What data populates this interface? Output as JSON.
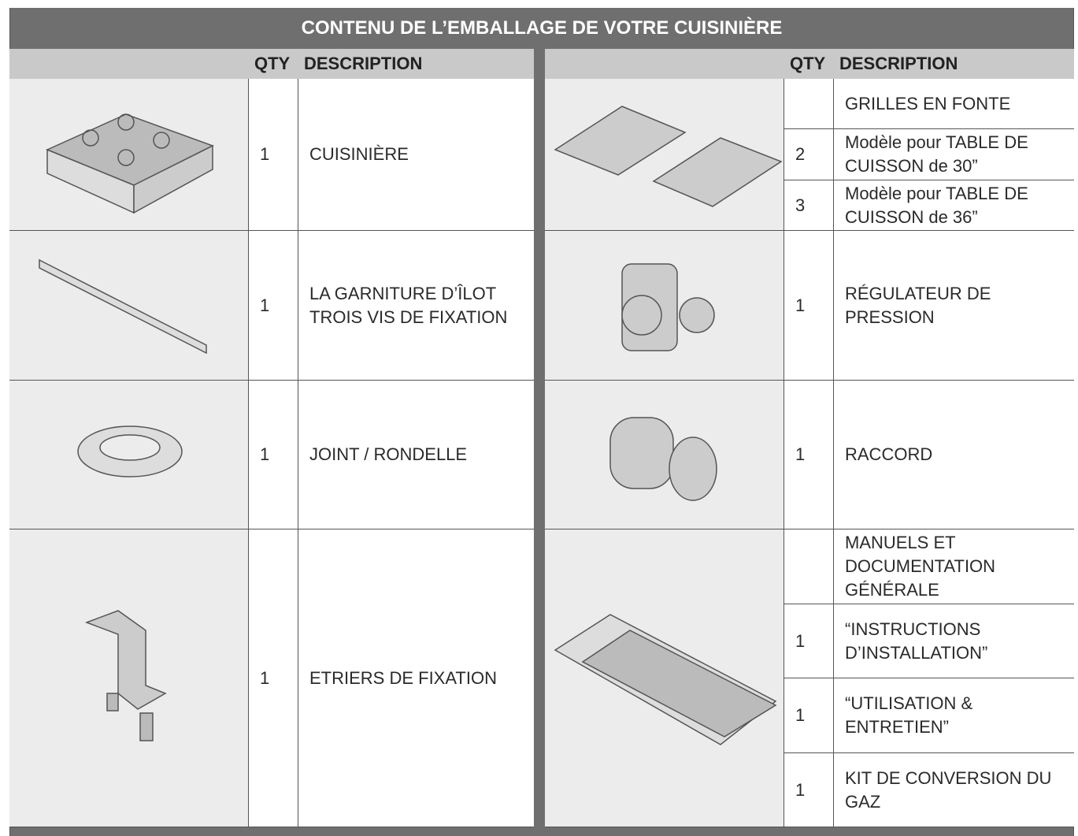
{
  "title": "CONTENU DE L’EMBALLAGE DE VOTRE CUISINIÈRE",
  "columns": {
    "qty": "QTY",
    "description": "DESCRIPTION"
  },
  "left": [
    {
      "qty": 1,
      "description": [
        "CUISINIÈRE"
      ]
    },
    {
      "qty": 1,
      "description": [
        "LA GARNITURE D’ÎLOT",
        "TROIS VIS DE FIXATION"
      ]
    },
    {
      "qty": 1,
      "description": [
        "JOINT / RONDELLE"
      ]
    },
    {
      "qty": 1,
      "description": [
        "ETRIERS DE FIXATION"
      ]
    }
  ],
  "right": [
    {
      "items": [
        {
          "description": [
            "GRILLES EN FONTE"
          ]
        },
        {
          "qty": 2,
          "description": [
            "Modèle pour TABLE DE",
            "CUISSON de 30”"
          ]
        },
        {
          "qty": 3,
          "description": [
            "Modèle pour TABLE DE",
            "CUISSON de 36”"
          ]
        }
      ]
    },
    {
      "items": [
        {
          "qty": 1,
          "description": [
            "RÉGULATEUR DE PRESSION"
          ]
        }
      ]
    },
    {
      "items": [
        {
          "qty": 1,
          "description": [
            "RACCORD"
          ]
        }
      ]
    },
    {
      "items": [
        {
          "description": [
            "MANUELS ET",
            "DOCUMENTATION",
            "GÉNÉRALE"
          ]
        },
        {
          "qty": 1,
          "description": [
            "“INSTRUCTIONS",
            "D’INSTALLATION”"
          ]
        },
        {
          "qty": 1,
          "description": [
            "“UTILISATION &",
            "ENTRETIEN”"
          ]
        },
        {
          "qty": 1,
          "description": [
            "KIT DE CONVERSION DU",
            "GAZ"
          ]
        }
      ]
    }
  ]
}
